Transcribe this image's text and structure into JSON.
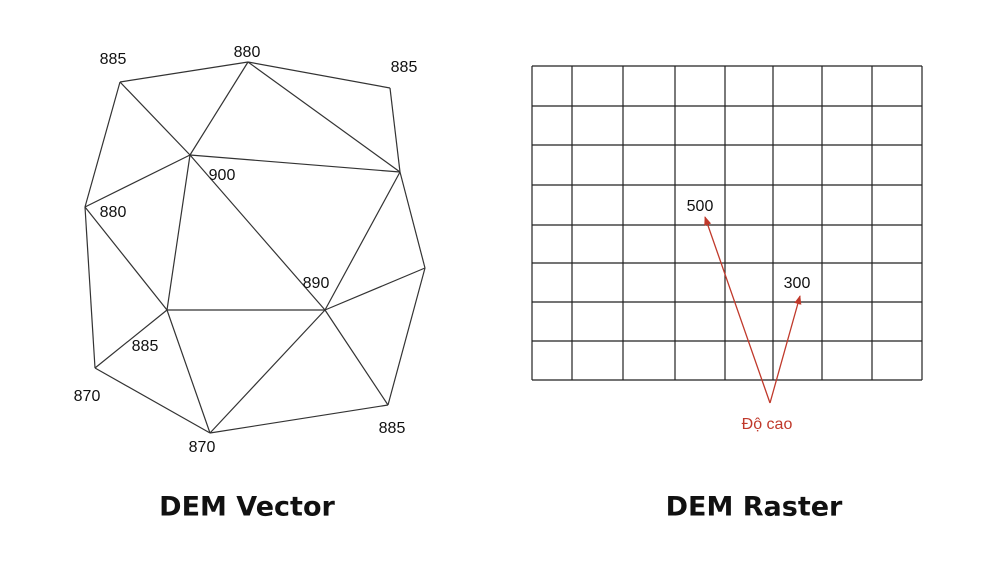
{
  "vector": {
    "caption": "DEM Vector",
    "nodes": [
      {
        "label": "885"
      },
      {
        "label": "880"
      },
      {
        "label": "885"
      },
      {
        "label": "900"
      },
      {
        "label": "880"
      },
      {
        "label": "890"
      },
      {
        "label": "885"
      },
      {
        "label": "870"
      },
      {
        "label": "870"
      },
      {
        "label": "885"
      }
    ]
  },
  "raster": {
    "caption": "DEM Raster",
    "cells": [
      {
        "label": "500"
      },
      {
        "label": "300"
      }
    ],
    "annotation": "Độ cao"
  }
}
